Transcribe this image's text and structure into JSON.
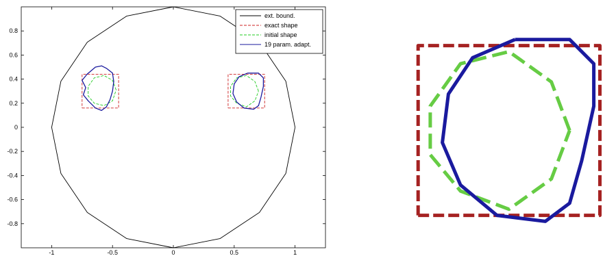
{
  "chart_data": [
    {
      "type": "line",
      "title": "",
      "xlabel": "",
      "ylabel": "",
      "xlim": [
        -1.25,
        1.25
      ],
      "ylim": [
        -1,
        1
      ],
      "grid": false,
      "legend_position": "top-right",
      "x_ticks": [
        "-1",
        "-0.5",
        "0",
        "0.5",
        "1"
      ],
      "y_ticks": [
        "-0.8",
        "-0.6",
        "-0.4",
        "-0.2",
        "0",
        "0.2",
        "0.4",
        "0.6",
        "0.8"
      ],
      "series": [
        {
          "name": "ext. bound.",
          "color": "#000000",
          "style": "solid",
          "points": [
            [
              1,
              0
            ],
            [
              0.924,
              0.383
            ],
            [
              0.707,
              0.707
            ],
            [
              0.383,
              0.924
            ],
            [
              0,
              1
            ],
            [
              -0.383,
              0.924
            ],
            [
              -0.707,
              0.707
            ],
            [
              -0.924,
              0.383
            ],
            [
              -1,
              0
            ],
            [
              -0.924,
              -0.383
            ],
            [
              -0.707,
              -0.707
            ],
            [
              -0.383,
              -0.924
            ],
            [
              0,
              -1
            ],
            [
              0.383,
              -0.924
            ],
            [
              0.707,
              -0.707
            ],
            [
              0.924,
              -0.383
            ],
            [
              1,
              0
            ]
          ]
        },
        {
          "name": "exact shape",
          "color": "#cc2222",
          "style": "dashed",
          "shapes": [
            [
              [
                -0.75,
                0.16
              ],
              [
                -0.45,
                0.16
              ],
              [
                -0.45,
                0.44
              ],
              [
                -0.75,
                0.44
              ],
              [
                -0.75,
                0.16
              ]
            ],
            [
              [
                0.45,
                0.16
              ],
              [
                0.75,
                0.16
              ],
              [
                0.75,
                0.44
              ],
              [
                0.45,
                0.44
              ],
              [
                0.45,
                0.16
              ]
            ]
          ]
        },
        {
          "name": "initial shape",
          "color": "#22cc22",
          "style": "dashed",
          "shapes": [
            [
              [
                -0.47,
                0.31
              ],
              [
                -0.5,
                0.39
              ],
              [
                -0.57,
                0.43
              ],
              [
                -0.65,
                0.41
              ],
              [
                -0.7,
                0.34
              ],
              [
                -0.7,
                0.26
              ],
              [
                -0.65,
                0.2
              ],
              [
                -0.57,
                0.18
              ],
              [
                -0.5,
                0.22
              ],
              [
                -0.47,
                0.31
              ]
            ],
            [
              [
                0.7,
                0.3
              ],
              [
                0.67,
                0.38
              ],
              [
                0.6,
                0.43
              ],
              [
                0.52,
                0.41
              ],
              [
                0.47,
                0.34
              ],
              [
                0.47,
                0.26
              ],
              [
                0.52,
                0.2
              ],
              [
                0.6,
                0.17
              ],
              [
                0.67,
                0.22
              ],
              [
                0.7,
                0.3
              ]
            ]
          ]
        },
        {
          "name": "19 param. adapt.",
          "color": "#1a1a9e",
          "style": "solid",
          "shapes": [
            [
              [
                -0.55,
                0.49
              ],
              [
                -0.5,
                0.45
              ],
              [
                -0.49,
                0.38
              ],
              [
                -0.5,
                0.3
              ],
              [
                -0.52,
                0.23
              ],
              [
                -0.55,
                0.17
              ],
              [
                -0.59,
                0.14
              ],
              [
                -0.64,
                0.16
              ],
              [
                -0.7,
                0.22
              ],
              [
                -0.74,
                0.27
              ],
              [
                -0.72,
                0.33
              ],
              [
                -0.75,
                0.39
              ],
              [
                -0.71,
                0.44
              ],
              [
                -0.64,
                0.5
              ],
              [
                -0.59,
                0.51
              ],
              [
                -0.55,
                0.49
              ]
            ],
            [
              [
                0.61,
                0.45
              ],
              [
                0.7,
                0.45
              ],
              [
                0.74,
                0.41
              ],
              [
                0.74,
                0.34
              ],
              [
                0.72,
                0.25
              ],
              [
                0.7,
                0.18
              ],
              [
                0.66,
                0.15
              ],
              [
                0.58,
                0.16
              ],
              [
                0.52,
                0.21
              ],
              [
                0.49,
                0.28
              ],
              [
                0.5,
                0.36
              ],
              [
                0.54,
                0.42
              ],
              [
                0.61,
                0.45
              ]
            ]
          ]
        }
      ]
    },
    {
      "type": "line",
      "title": "",
      "xlabel": "",
      "ylabel": "",
      "xlim": [
        0.4,
        0.78
      ],
      "ylim": [
        0.12,
        0.47
      ],
      "grid": false,
      "axes_visible": false,
      "series": [
        {
          "color": "#a52222",
          "style": "dashed",
          "points": [
            [
              0.45,
              0.16
            ],
            [
              0.75,
              0.16
            ],
            [
              0.75,
              0.44
            ],
            [
              0.45,
              0.44
            ],
            [
              0.45,
              0.16
            ]
          ]
        },
        {
          "color": "#66cc44",
          "style": "dashed",
          "points": [
            [
              0.7,
              0.3
            ],
            [
              0.67,
              0.38
            ],
            [
              0.6,
              0.43
            ],
            [
              0.52,
              0.41
            ],
            [
              0.47,
              0.34
            ],
            [
              0.47,
              0.26
            ],
            [
              0.52,
              0.2
            ],
            [
              0.6,
              0.17
            ],
            [
              0.67,
              0.22
            ],
            [
              0.7,
              0.3
            ]
          ]
        },
        {
          "color": "#1a1a9e",
          "style": "solid",
          "points": [
            [
              0.61,
              0.45
            ],
            [
              0.7,
              0.45
            ],
            [
              0.74,
              0.41
            ],
            [
              0.74,
              0.34
            ],
            [
              0.72,
              0.25
            ],
            [
              0.7,
              0.18
            ],
            [
              0.66,
              0.15
            ],
            [
              0.58,
              0.16
            ],
            [
              0.52,
              0.21
            ],
            [
              0.49,
              0.28
            ],
            [
              0.5,
              0.36
            ],
            [
              0.54,
              0.42
            ],
            [
              0.61,
              0.45
            ]
          ]
        }
      ]
    }
  ]
}
